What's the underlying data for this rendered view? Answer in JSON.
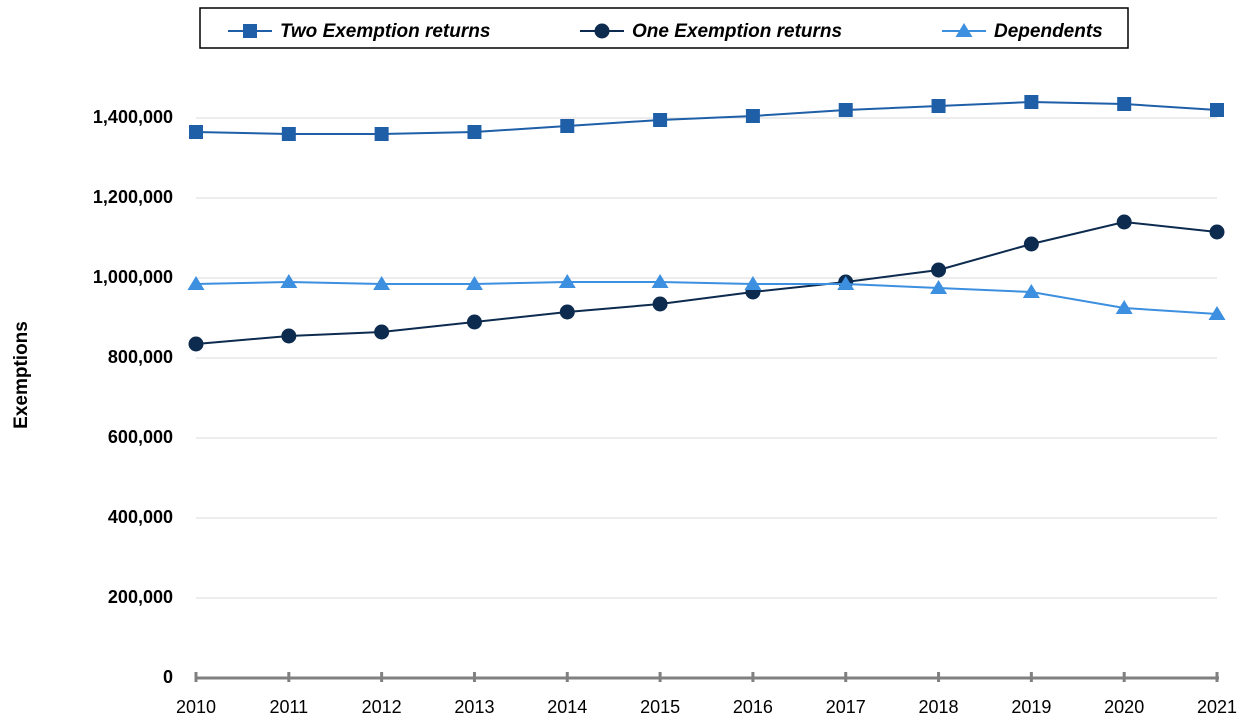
{
  "chart_data": {
    "type": "line",
    "y_label": "Exemptions",
    "categories": [
      "2010",
      "2011",
      "2012",
      "2013",
      "2014",
      "2015",
      "2016",
      "2017",
      "2018",
      "2019",
      "2020",
      "2021"
    ],
    "series": [
      {
        "name": "Two Exemption returns",
        "color": "#1f5fa8",
        "marker": "square",
        "values": [
          1365000,
          1360000,
          1360000,
          1365000,
          1380000,
          1395000,
          1405000,
          1420000,
          1430000,
          1440000,
          1435000,
          1420000
        ]
      },
      {
        "name": "One Exemption returns",
        "color": "#0d2b4e",
        "marker": "circle",
        "values": [
          835000,
          855000,
          865000,
          890000,
          915000,
          935000,
          965000,
          990000,
          1020000,
          1085000,
          1140000,
          1115000
        ]
      },
      {
        "name": "Dependents",
        "color": "#3d8fe0",
        "marker": "triangle",
        "values": [
          985000,
          990000,
          985000,
          985000,
          990000,
          990000,
          985000,
          985000,
          975000,
          965000,
          925000,
          910000
        ]
      }
    ],
    "ylim": [
      0,
      1400000
    ],
    "yticks": [
      0,
      {
        "value": 200000,
        "label": "200,000"
      },
      {
        "value": 400000,
        "label": "400,000"
      },
      {
        "value": 600000,
        "label": "600,000"
      },
      {
        "value": 800000,
        "label": "800,000"
      },
      {
        "value": 1000000,
        "label": "1,000,000"
      },
      {
        "value": 1200000,
        "label": "1,200,000"
      },
      {
        "value": 1400000,
        "label": "1,400,000"
      }
    ],
    "grid": true,
    "legend": "top"
  }
}
